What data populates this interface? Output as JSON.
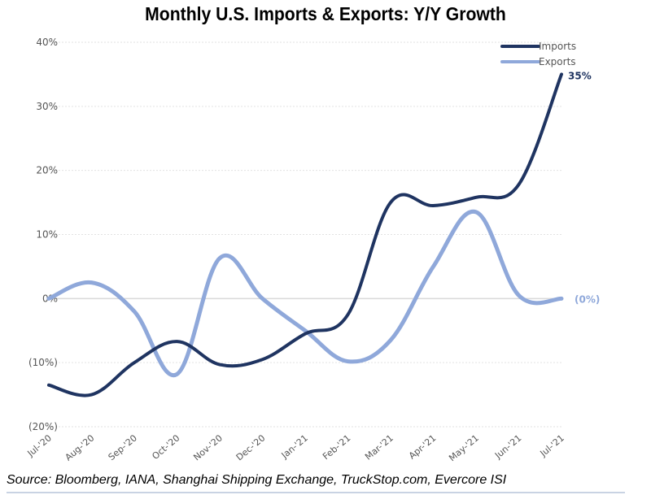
{
  "chart_data": {
    "type": "line",
    "title": "Monthly U.S. Imports & Exports: Y/Y Growth",
    "xlabel": "",
    "ylabel": "",
    "categories": [
      "Jul-'20",
      "Aug-'20",
      "Sep-'20",
      "Oct-'20",
      "Nov-'20",
      "Dec-'20",
      "Jan-'21",
      "Feb-'21",
      "Mar-'21",
      "Apr-'21",
      "May-'21",
      "Jun-'21",
      "Jul-'21"
    ],
    "ylim": [
      -20,
      40
    ],
    "yticks": [
      40,
      30,
      20,
      10,
      0,
      -10,
      -20
    ],
    "ytick_labels": [
      "40%",
      "30%",
      "20%",
      "10%",
      "0%",
      "(10%)",
      "(20%)"
    ],
    "grid": true,
    "legend_position": "top-right",
    "series": [
      {
        "name": "Imports",
        "color": "#1f3461",
        "values": [
          -13.5,
          -15.0,
          -10.0,
          -6.7,
          -10.3,
          -9.5,
          -5.5,
          -2.5,
          15.0,
          14.5,
          15.8,
          17.8,
          35.0
        ],
        "end_label": "35%"
      },
      {
        "name": "Exports",
        "color": "#8fa8da",
        "values": [
          0.0,
          2.5,
          -2.0,
          -11.8,
          6.3,
          0.0,
          -5.0,
          -9.8,
          -6.5,
          5.0,
          13.5,
          0.5,
          0.0
        ],
        "end_label": "(0%)"
      }
    ],
    "source": "Source: Bloomberg, IANA, Shanghai Shipping Exchange, TruckStop.com, Evercore ISI"
  }
}
